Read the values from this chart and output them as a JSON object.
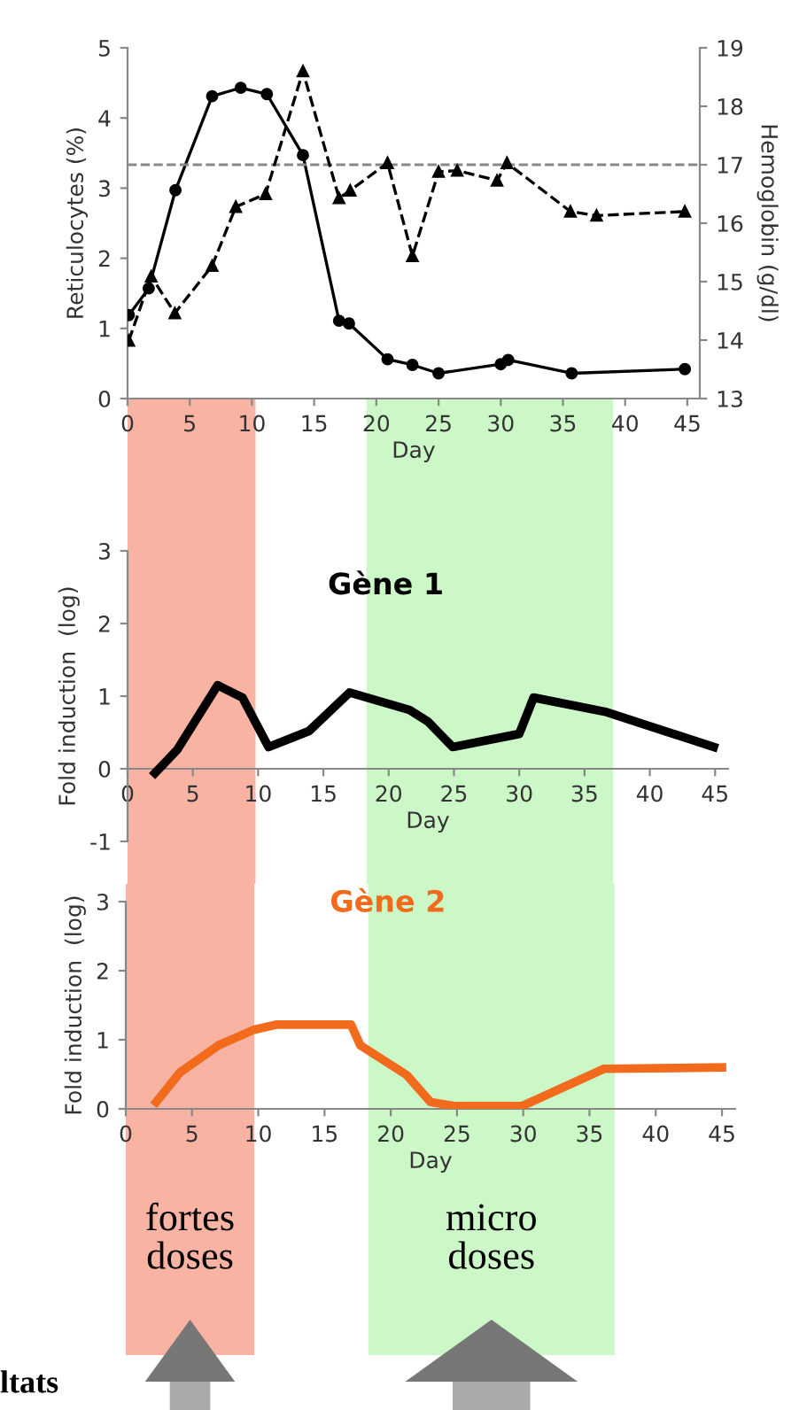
{
  "chart_data": [
    {
      "type": "line",
      "xlabel": "Day",
      "ylabel": "Reticulocytes (%)",
      "y2label": "Hemoglobin (g/dl)",
      "xlim": [
        0,
        46
      ],
      "xticks": [
        0,
        5,
        10,
        15,
        20,
        25,
        30,
        35,
        40,
        45
      ],
      "ylim": [
        0,
        5
      ],
      "yticks": [
        0,
        1,
        2,
        3,
        4,
        5
      ],
      "y2lim": [
        13,
        19
      ],
      "y2ticks": [
        13,
        14,
        15,
        16,
        17,
        18,
        19
      ],
      "grid": false,
      "legend": false,
      "series": [
        {
          "color": "#000000",
          "marker": "circle",
          "line_style": "solid",
          "x": [
            0.1,
            1.7,
            3.85,
            6.8,
            9.1,
            11.2,
            14.1,
            17,
            17.8,
            20.9,
            22.9,
            25,
            30,
            30.6,
            35.7,
            44.8
          ],
          "values": [
            1.19,
            1.57,
            2.97,
            4.31,
            4.43,
            4.34,
            3.47,
            1.11,
            1.07,
            0.56,
            0.48,
            0.36,
            0.49,
            0.55,
            0.36,
            0.42
          ]
        },
        {
          "color": "#000000",
          "marker": "triangle",
          "line_style": "dashed",
          "axis": "y2",
          "x": [
            0.1,
            1.9,
            3.8,
            6.8,
            8.7,
            11.1,
            14.1,
            17,
            17.9,
            20.9,
            22.9,
            25,
            26.5,
            29.7,
            30.5,
            35.6,
            37.7,
            44.8
          ],
          "values": [
            13.99,
            15.09,
            14.46,
            15.27,
            16.28,
            16.5,
            18.6,
            16.43,
            16.56,
            17.03,
            15.44,
            16.88,
            16.9,
            16.73,
            17.03,
            16.2,
            16.13,
            16.2
          ]
        }
      ],
      "ref_lines": [
        {
          "axis": "y2",
          "value": 17,
          "color": "#888888",
          "line_style": "dashed"
        }
      ]
    },
    {
      "type": "line",
      "title": "Gène 1",
      "xlabel": "Day",
      "ylabel": "Fold induction  (log)",
      "xlim": [
        0,
        46
      ],
      "xticks": [
        0,
        5,
        10,
        15,
        20,
        25,
        30,
        35,
        40,
        45
      ],
      "ylim": [
        -1,
        3
      ],
      "yticks": [
        -1,
        0,
        1,
        2,
        3
      ],
      "grid": false,
      "legend": false,
      "series": [
        {
          "color": "#000000",
          "marker": "none",
          "line_style": "solid",
          "x": [
            2.1,
            3.8,
            6.9,
            8.8,
            10.8,
            13.9,
            17,
            21.6,
            23,
            24.9,
            30,
            31.1,
            36.7,
            44.9
          ],
          "values": [
            -0.06,
            0.26,
            1.15,
            0.98,
            0.3,
            0.52,
            1.05,
            0.81,
            0.65,
            0.3,
            0.48,
            0.98,
            0.78,
            0.3
          ]
        }
      ],
      "bands": [
        {
          "axis": "x",
          "from": 0,
          "to": 9.8,
          "color": "#f9b3a3"
        },
        {
          "axis": "x",
          "from": 18.3,
          "to": 37.2,
          "color": "#ccf8c8"
        }
      ]
    },
    {
      "type": "line",
      "title": "Gène 2",
      "xlabel": "Day",
      "ylabel": "Fold induction  (log)",
      "xlim": [
        0,
        46
      ],
      "xticks": [
        0,
        5,
        10,
        15,
        20,
        25,
        30,
        35,
        40,
        45
      ],
      "ylim": [
        0,
        3
      ],
      "yticks": [
        0,
        1,
        2,
        3
      ],
      "grid": false,
      "legend": false,
      "series": [
        {
          "color": "#f26b1d",
          "marker": "none",
          "line_style": "solid",
          "x": [
            2.3,
            4.1,
            7,
            9.6,
            11.4,
            17,
            17.7,
            21.2,
            23,
            24.8,
            29.9,
            36.1,
            45
          ],
          "values": [
            0.1,
            0.53,
            0.92,
            1.14,
            1.22,
            1.22,
            0.92,
            0.49,
            0.1,
            0.04,
            0.04,
            0.58,
            0.6
          ]
        }
      ],
      "bands": [
        {
          "axis": "x",
          "from": 0,
          "to": 9.7,
          "color": "#f9b3a3",
          "label": "fortes doses"
        },
        {
          "axis": "x",
          "from": 18.3,
          "to": 36.9,
          "color": "#ccf8c8",
          "label": "micro doses"
        }
      ],
      "annotations": [
        "ltats"
      ]
    }
  ]
}
